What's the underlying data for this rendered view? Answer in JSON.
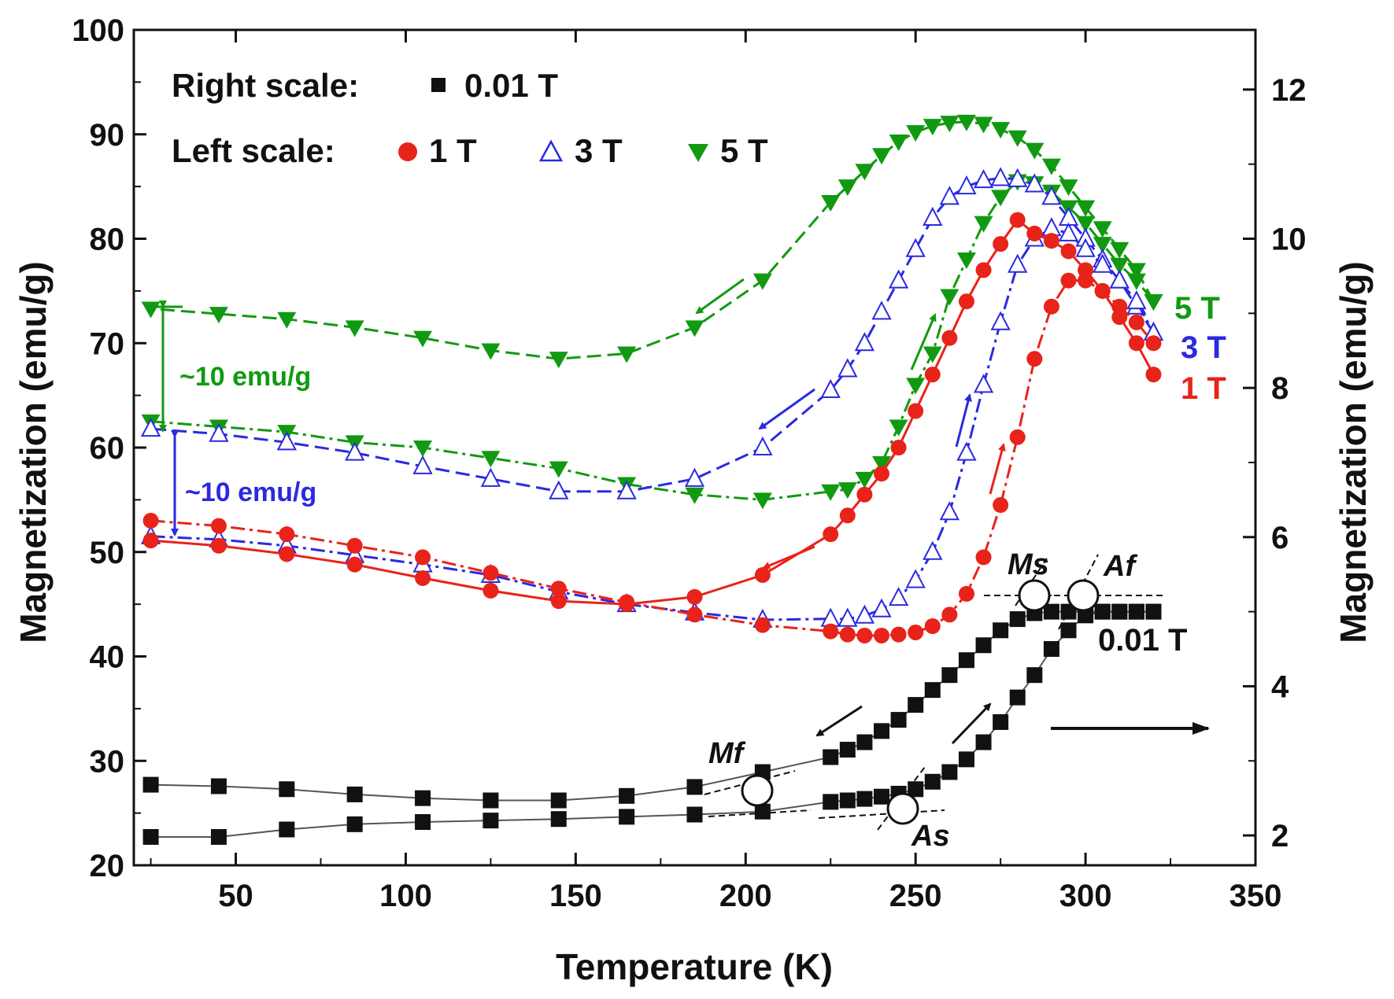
{
  "chart_data": {
    "type": "line",
    "xlabel": "Temperature (K)",
    "ylabel_left": "Magnetization (emu/g)",
    "ylabel_right": "Magnetization (emu/g)",
    "xlim": [
      20,
      350
    ],
    "ylim_left": [
      20,
      100
    ],
    "ylim_right": [
      1.6,
      12.8
    ],
    "x_ticks": [
      50,
      100,
      150,
      200,
      250,
      300,
      350
    ],
    "y_left_ticks": [
      20,
      30,
      40,
      50,
      60,
      70,
      80,
      90,
      100
    ],
    "y_right_ticks": [
      2,
      4,
      6,
      8,
      10,
      12
    ],
    "legend": {
      "right_label": "Right scale:",
      "left_label": "Left scale:",
      "entries": [
        {
          "name": "0.01 T",
          "marker": "filled-square",
          "color": "#111111"
        },
        {
          "name": "1 T",
          "marker": "filled-circle",
          "color": "#e8231a"
        },
        {
          "name": "3 T",
          "marker": "open-triangle-up",
          "color": "#2a2ae0"
        },
        {
          "name": "5 T",
          "marker": "filled-triangle-down",
          "color": "#119a11"
        }
      ]
    },
    "series": [
      {
        "name": "5 T",
        "axis": "left",
        "color": "#119a11",
        "marker": "filled-triangle-down",
        "cooling": {
          "x": [
            320,
            315,
            310,
            305,
            300,
            295,
            290,
            285,
            280,
            275,
            270,
            265,
            260,
            255,
            250,
            245,
            240,
            235,
            230,
            225,
            205,
            185,
            165,
            145,
            125,
            105,
            85,
            65,
            45,
            25
          ],
          "y": [
            74,
            77,
            79,
            81,
            83,
            85,
            87,
            88.5,
            89.7,
            90.5,
            91,
            91.2,
            91.1,
            90.8,
            90.2,
            89.3,
            88,
            86.5,
            85,
            83.5,
            76,
            71.5,
            69,
            68.5,
            69.3,
            70.5,
            71.5,
            72.3,
            72.8,
            73.3
          ]
        },
        "heating": {
          "x": [
            25,
            45,
            65,
            85,
            105,
            125,
            145,
            165,
            185,
            205,
            225,
            230,
            235,
            240,
            245,
            250,
            255,
            260,
            265,
            270,
            275,
            280,
            285,
            290,
            295,
            300,
            305,
            310,
            315,
            320
          ],
          "y": [
            62.5,
            62,
            61.5,
            60.5,
            60,
            59,
            58,
            56.5,
            55.5,
            55,
            55.8,
            56,
            57,
            58.5,
            62,
            66,
            69,
            74.5,
            78,
            81.5,
            84,
            85.5,
            85.3,
            84.5,
            83,
            81.5,
            79.5,
            77.5,
            76,
            74
          ]
        }
      },
      {
        "name": "3 T",
        "axis": "left",
        "color": "#2a2ae0",
        "marker": "open-triangle-up",
        "cooling": {
          "x": [
            320,
            315,
            310,
            305,
            300,
            295,
            290,
            285,
            280,
            275,
            270,
            265,
            260,
            255,
            250,
            245,
            240,
            235,
            230,
            225,
            205,
            185,
            165,
            145,
            125,
            105,
            85,
            65,
            45,
            25
          ],
          "y": [
            71,
            73.5,
            76,
            78,
            80,
            82,
            84,
            85.2,
            85.7,
            85.8,
            85.6,
            85,
            84,
            82,
            79,
            76,
            73,
            70,
            67.5,
            65.5,
            60,
            57,
            55.8,
            55.8,
            57,
            58.2,
            59.5,
            60.5,
            61.3,
            61.8
          ]
        },
        "heating": {
          "x": [
            25,
            45,
            65,
            85,
            105,
            125,
            145,
            165,
            185,
            205,
            225,
            230,
            235,
            240,
            245,
            250,
            255,
            260,
            265,
            270,
            275,
            280,
            285,
            290,
            295,
            300,
            305,
            310,
            315,
            320
          ],
          "y": [
            51.5,
            51.2,
            50.6,
            49.7,
            48.8,
            47.8,
            46.2,
            45,
            44.2,
            43.5,
            43.6,
            43.6,
            43.9,
            44.5,
            45.6,
            47.3,
            50,
            53.8,
            59.5,
            66,
            72,
            77.5,
            80,
            81,
            80.5,
            79,
            77.5,
            76,
            74,
            71
          ]
        }
      },
      {
        "name": "1 T",
        "axis": "left",
        "color": "#e8231a",
        "marker": "filled-circle",
        "cooling": {
          "x": [
            320,
            315,
            310,
            305,
            300,
            295,
            290,
            285,
            280,
            275,
            270,
            265,
            260,
            255,
            250,
            245,
            240,
            235,
            230,
            225,
            205,
            185,
            165,
            145,
            125,
            105,
            85,
            65,
            45,
            25
          ],
          "y": [
            67,
            70,
            72.5,
            75,
            77,
            78.8,
            79.8,
            80.5,
            81.8,
            79.5,
            77,
            74,
            70.5,
            67,
            63.5,
            60,
            57.5,
            55.5,
            53.5,
            51.7,
            47.8,
            45.7,
            45,
            45.3,
            46.3,
            47.5,
            48.8,
            49.8,
            50.6,
            51.1
          ]
        },
        "heating": {
          "x": [
            25,
            45,
            65,
            85,
            105,
            125,
            145,
            165,
            185,
            205,
            225,
            230,
            235,
            240,
            245,
            250,
            255,
            260,
            265,
            270,
            275,
            280,
            285,
            290,
            295,
            300,
            305,
            310,
            315,
            320
          ],
          "y": [
            53,
            52.5,
            51.7,
            50.6,
            49.5,
            48,
            46.5,
            45.2,
            44,
            43,
            42.4,
            42.1,
            42,
            42,
            42.1,
            42.3,
            42.9,
            44,
            46,
            49.5,
            54.5,
            61,
            68.5,
            73.5,
            76,
            76,
            75,
            73.5,
            72,
            70
          ]
        }
      },
      {
        "name": "0.01 T",
        "axis": "right",
        "color": "#111111",
        "marker": "filled-square",
        "cooling": {
          "x": [
            320,
            315,
            310,
            305,
            300,
            295,
            290,
            285,
            280,
            275,
            270,
            265,
            260,
            255,
            250,
            245,
            240,
            235,
            230,
            225,
            205,
            185,
            165,
            145,
            125,
            105,
            85,
            65,
            45,
            25
          ],
          "y": [
            5.0,
            5.0,
            5.0,
            5.0,
            5.0,
            5.0,
            5.0,
            4.98,
            4.9,
            4.75,
            4.55,
            4.35,
            4.15,
            3.95,
            3.75,
            3.55,
            3.4,
            3.25,
            3.15,
            3.05,
            2.85,
            2.65,
            2.53,
            2.47,
            2.47,
            2.5,
            2.55,
            2.62,
            2.66,
            2.68
          ]
        },
        "heating": {
          "x": [
            25,
            45,
            65,
            85,
            105,
            125,
            145,
            165,
            185,
            205,
            225,
            230,
            235,
            240,
            245,
            250,
            255,
            260,
            265,
            270,
            275,
            280,
            285,
            290,
            295,
            300,
            305,
            310,
            315,
            320
          ],
          "y": [
            1.98,
            1.98,
            2.08,
            2.15,
            2.18,
            2.2,
            2.22,
            2.25,
            2.28,
            2.32,
            2.45,
            2.47,
            2.49,
            2.52,
            2.56,
            2.62,
            2.72,
            2.85,
            3.02,
            3.25,
            3.52,
            3.85,
            4.15,
            4.5,
            4.75,
            4.95,
            5.0,
            5.0,
            5.0,
            5.0
          ]
        }
      }
    ],
    "annotations": {
      "gap_5T_label": "~10 emu/g",
      "gap_3T_label": "~10 emu/g",
      "tag_5T": "5 T",
      "tag_3T": "3 T",
      "tag_1T": "1 T",
      "tag_001T": "0.01 T",
      "Ms": "Ms",
      "Af": "Af",
      "Mf": "Mf",
      "As": "As"
    }
  }
}
